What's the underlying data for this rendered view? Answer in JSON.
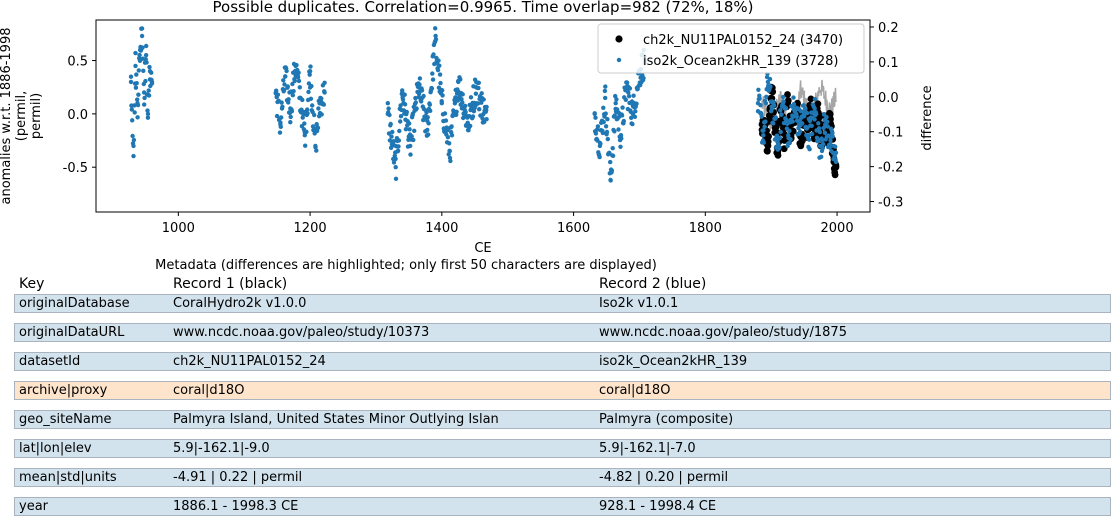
{
  "colors": {
    "record1": "#000000",
    "record2": "#1f77b4",
    "difference": "#a6a6a6",
    "row_normal": "#d2e3ee",
    "row_diff": "#ffe4cc"
  },
  "chart_data": {
    "type": "scatter",
    "title": "Possible duplicates. Correlation=0.9965. Time overlap=982 (72%, 18%)",
    "xlabel": "CE",
    "ylabel": "anomalies w.r.t. 1886-1998\n(permil,\npermil)",
    "y2label": "difference",
    "xlim": [
      875,
      2050
    ],
    "ylim": [
      -0.92,
      0.88
    ],
    "y2lim": [
      -0.33,
      0.22
    ],
    "xticks": [
      1000,
      1200,
      1400,
      1600,
      1800,
      2000
    ],
    "yticks": [
      -0.5,
      0.0,
      0.5
    ],
    "y2ticks": [
      -0.3,
      -0.2,
      -0.1,
      0.0,
      0.1,
      0.2
    ],
    "grid": false,
    "legend_position": "top-right",
    "series": [
      {
        "name": "ch2k_NU11PAL0152_24 (3470)",
        "axis": "left",
        "marker": "large-dot",
        "segments": [
          {
            "x_start": 1886.1,
            "x_end": 1998.3,
            "points": [
              [
                1886.1,
                -0.15
              ],
              [
                1890,
                -0.1
              ],
              [
                1895,
                -0.3
              ],
              [
                1900,
                0.25
              ],
              [
                1905,
                -0.05
              ],
              [
                1910,
                -0.35
              ],
              [
                1915,
                0.05
              ],
              [
                1920,
                -0.25
              ],
              [
                1925,
                0.1
              ],
              [
                1930,
                -0.2
              ],
              [
                1935,
                -0.05
              ],
              [
                1940,
                0.1
              ],
              [
                1945,
                -0.3
              ],
              [
                1950,
                0.0
              ],
              [
                1955,
                -0.15
              ],
              [
                1960,
                0.05
              ],
              [
                1965,
                -0.2
              ],
              [
                1970,
                0.05
              ],
              [
                1975,
                -0.3
              ],
              [
                1980,
                -0.1
              ],
              [
                1985,
                -0.2
              ],
              [
                1990,
                -0.05
              ],
              [
                1995,
                -0.45
              ],
              [
                1998.3,
                -0.5
              ]
            ]
          }
        ]
      },
      {
        "name": "iso2k_Ocean2kHR_139 (3728)",
        "axis": "left",
        "marker": "small-dot",
        "segments": [
          {
            "x_start": 928.1,
            "x_end": 960,
            "points": [
              [
                928.1,
                0.3
              ],
              [
                932,
                -0.3
              ],
              [
                935,
                0.45
              ],
              [
                938,
                0.1
              ],
              [
                942,
                0.6
              ],
              [
                945,
                0.8
              ],
              [
                948,
                0.2
              ],
              [
                951,
                0.55
              ],
              [
                954,
                0.0
              ],
              [
                957,
                0.4
              ],
              [
                960,
                0.3
              ]
            ]
          },
          {
            "x_start": 1148,
            "x_end": 1222,
            "points": [
              [
                1148,
                0.2
              ],
              [
                1155,
                -0.1
              ],
              [
                1162,
                0.35
              ],
              [
                1170,
                0.05
              ],
              [
                1178,
                0.45
              ],
              [
                1185,
                0.15
              ],
              [
                1192,
                -0.2
              ],
              [
                1200,
                0.4
              ],
              [
                1208,
                -0.3
              ],
              [
                1215,
                0.1
              ],
              [
                1222,
                0.2
              ]
            ]
          },
          {
            "x_start": 1318,
            "x_end": 1468,
            "points": [
              [
                1318,
                0.0
              ],
              [
                1330,
                -0.5
              ],
              [
                1340,
                0.2
              ],
              [
                1352,
                -0.3
              ],
              [
                1365,
                0.25
              ],
              [
                1378,
                -0.15
              ],
              [
                1390,
                0.68
              ],
              [
                1400,
                0.1
              ],
              [
                1412,
                -0.35
              ],
              [
                1425,
                0.3
              ],
              [
                1440,
                -0.1
              ],
              [
                1452,
                0.25
              ],
              [
                1468,
                -0.05
              ]
            ]
          },
          {
            "x_start": 1632,
            "x_end": 1708,
            "points": [
              [
                1632,
                0.0
              ],
              [
                1640,
                -0.3
              ],
              [
                1648,
                0.15
              ],
              [
                1656,
                -0.62
              ],
              [
                1664,
                0.1
              ],
              [
                1672,
                -0.2
              ],
              [
                1680,
                0.25
              ],
              [
                1690,
                0.0
              ],
              [
                1700,
                0.38
              ],
              [
                1708,
                0.5
              ]
            ]
          },
          {
            "x_start": 1880,
            "x_end": 1998.4,
            "points": [
              [
                1880,
                0.1
              ],
              [
                1888,
                -0.2
              ],
              [
                1895,
                0.3
              ],
              [
                1902,
                0.05
              ],
              [
                1910,
                -0.3
              ],
              [
                1918,
                0.1
              ],
              [
                1926,
                -0.2
              ],
              [
                1934,
                0.05
              ],
              [
                1942,
                -0.1
              ],
              [
                1950,
                0.0
              ],
              [
                1958,
                -0.2
              ],
              [
                1966,
                0.05
              ],
              [
                1974,
                -0.3
              ],
              [
                1982,
                -0.1
              ],
              [
                1990,
                -0.25
              ],
              [
                1998.4,
                -0.45
              ]
            ]
          }
        ]
      },
      {
        "name": "difference",
        "axis": "right",
        "marker": "line",
        "segments": [
          {
            "x_start": 1886.1,
            "x_end": 1998.3,
            "points": [
              [
                1886.1,
                -0.02
              ],
              [
                1900,
                -0.08
              ],
              [
                1915,
                0.0
              ],
              [
                1930,
                -0.12
              ],
              [
                1945,
                0.02
              ],
              [
                1960,
                -0.06
              ],
              [
                1975,
                0.03
              ],
              [
                1990,
                -0.04
              ],
              [
                1998.3,
                0.0
              ]
            ]
          }
        ]
      }
    ]
  },
  "metadata": {
    "caption": "Metadata (differences are highlighted; only first 50 characters are displayed)",
    "header": {
      "key": "Key",
      "record1": "Record 1 (black)",
      "record2": "Record 2 (blue)"
    },
    "rows": [
      {
        "key": "originalDatabase",
        "record1": "CoralHydro2k v1.0.0",
        "record2": "Iso2k v1.0.1",
        "highlight": false
      },
      {
        "key": "originalDataURL",
        "record1": "www.ncdc.noaa.gov/paleo/study/10373",
        "record2": "www.ncdc.noaa.gov/paleo/study/1875",
        "highlight": false
      },
      {
        "key": "datasetId",
        "record1": "ch2k_NU11PAL0152_24",
        "record2": "iso2k_Ocean2kHR_139",
        "highlight": false
      },
      {
        "key": "archive|proxy",
        "record1": "coral|d18O",
        "record2": "coral|d18O",
        "highlight": true
      },
      {
        "key": "geo_siteName",
        "record1": "Palmyra Island, United States Minor Outlying Islan",
        "record2": "Palmyra (composite)",
        "highlight": false
      },
      {
        "key": "lat|lon|elev",
        "record1": "5.9|-162.1|-9.0",
        "record2": "5.9|-162.1|-7.0",
        "highlight": false
      },
      {
        "key": "mean|std|units",
        "record1": "-4.91 | 0.22 | permil",
        "record2": "-4.82 | 0.20 | permil",
        "highlight": false
      },
      {
        "key": "year",
        "record1": "1886.1 - 1998.3 CE",
        "record2": "928.1 - 1998.4 CE",
        "highlight": false
      }
    ]
  }
}
